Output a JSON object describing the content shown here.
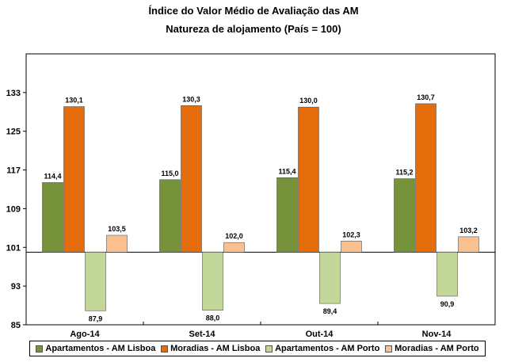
{
  "header": {
    "title": "Índice do Valor Médio de Avaliação das AM",
    "subtitle": "Natureza de alojamento (País = 100)"
  },
  "chart_data": {
    "type": "bar",
    "categories": [
      "Ago-14",
      "Set-14",
      "Out-14",
      "Nov-14"
    ],
    "baseline": 100,
    "ylim": [
      85,
      141
    ],
    "yticks": [
      85,
      93,
      101,
      109,
      117,
      125,
      133
    ],
    "grid": false,
    "legend_position": "bottom",
    "series": [
      {
        "name": "Apartamentos - AM Lisboa",
        "color": "#76933C",
        "values": [
          114.4,
          115.0,
          115.4,
          115.2
        ],
        "labels": [
          "114,4",
          "115,0",
          "115,4",
          "115,2"
        ]
      },
      {
        "name": "Moradias - AM Lisboa",
        "color": "#E46C0A",
        "values": [
          130.1,
          130.3,
          130.0,
          130.7
        ],
        "labels": [
          "130,1",
          "130,3",
          "130,0",
          "130,7"
        ]
      },
      {
        "name": "Apartamentos - AM Porto",
        "color": "#C4D79B",
        "values": [
          87.9,
          88.0,
          89.4,
          90.9
        ],
        "labels": [
          "87,9",
          "88,0",
          "89,4",
          "90,9"
        ]
      },
      {
        "name": "Moradias - AM Porto",
        "color": "#FAC090",
        "values": [
          103.5,
          102.0,
          102.3,
          103.2
        ],
        "labels": [
          "103,5",
          "102,0",
          "102,3",
          "103,2"
        ]
      }
    ]
  }
}
